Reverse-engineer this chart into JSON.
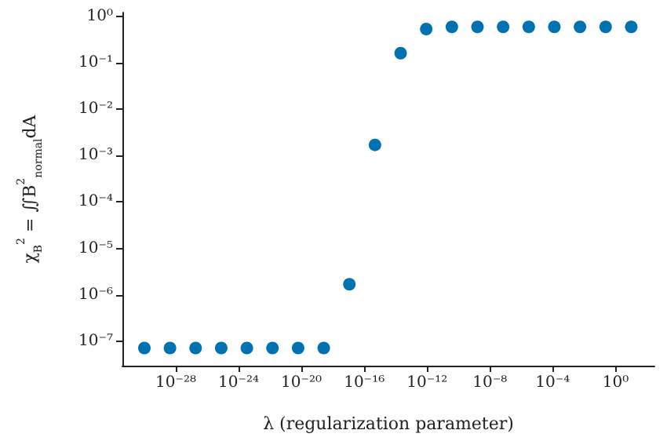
{
  "chart_data": {
    "type": "scatter",
    "xlabel": "λ (regularization parameter)",
    "ylabel": "χ$_{B}$$^{2}$ = ∬B$^{2}$$_{normal}$dA",
    "log": "xy",
    "marker": "circle",
    "grid": false,
    "x": [
      1e-30,
      4.28e-29,
      1.83e-27,
      7.85e-26,
      3.36e-24,
      1.44e-22,
      6.16e-21,
      2.64e-19,
      1.13e-17,
      4.83e-16,
      2.07e-14,
      8.86e-13,
      3.79e-11,
      1.62e-09,
      6.95e-08,
      2.98e-06,
      0.000127,
      0.00546,
      0.234,
      10
    ],
    "series": [
      {
        "color": "#0072b2",
        "values": [
          7.2e-08,
          7.2e-08,
          7.2e-08,
          7.2e-08,
          7.2e-08,
          7.2e-08,
          7.2e-08,
          7.2e-08,
          1.7e-06,
          0.0017,
          0.16,
          0.53,
          0.59,
          0.59,
          0.59,
          0.59,
          0.59,
          0.59,
          0.59,
          0.59
        ]
      }
    ],
    "xlim": [
      4e-32,
      300.0
    ],
    "ylim": [
      3e-08,
      1.2
    ],
    "xticks": [
      {
        "value": 1e-28,
        "label": "10⁻²⁸"
      },
      {
        "value": 1e-24,
        "label": "10⁻²⁴"
      },
      {
        "value": 1e-20,
        "label": "10⁻²⁰"
      },
      {
        "value": 1e-16,
        "label": "10⁻¹⁶"
      },
      {
        "value": 1e-12,
        "label": "10⁻¹²"
      },
      {
        "value": 1e-08,
        "label": "10⁻⁸"
      },
      {
        "value": 0.0001,
        "label": "10⁻⁴"
      },
      {
        "value": 1,
        "label": "10⁰"
      }
    ],
    "yticks": [
      {
        "value": 1e-07,
        "label": "10⁻⁷"
      },
      {
        "value": 1e-06,
        "label": "10⁻⁶"
      },
      {
        "value": 1e-05,
        "label": "10⁻⁵"
      },
      {
        "value": 0.0001,
        "label": "10⁻⁴"
      },
      {
        "value": 0.001,
        "label": "10⁻³"
      },
      {
        "value": 0.01,
        "label": "10⁻²"
      },
      {
        "value": 0.1,
        "label": "10⁻¹"
      },
      {
        "value": 1,
        "label": "10⁰"
      }
    ]
  }
}
